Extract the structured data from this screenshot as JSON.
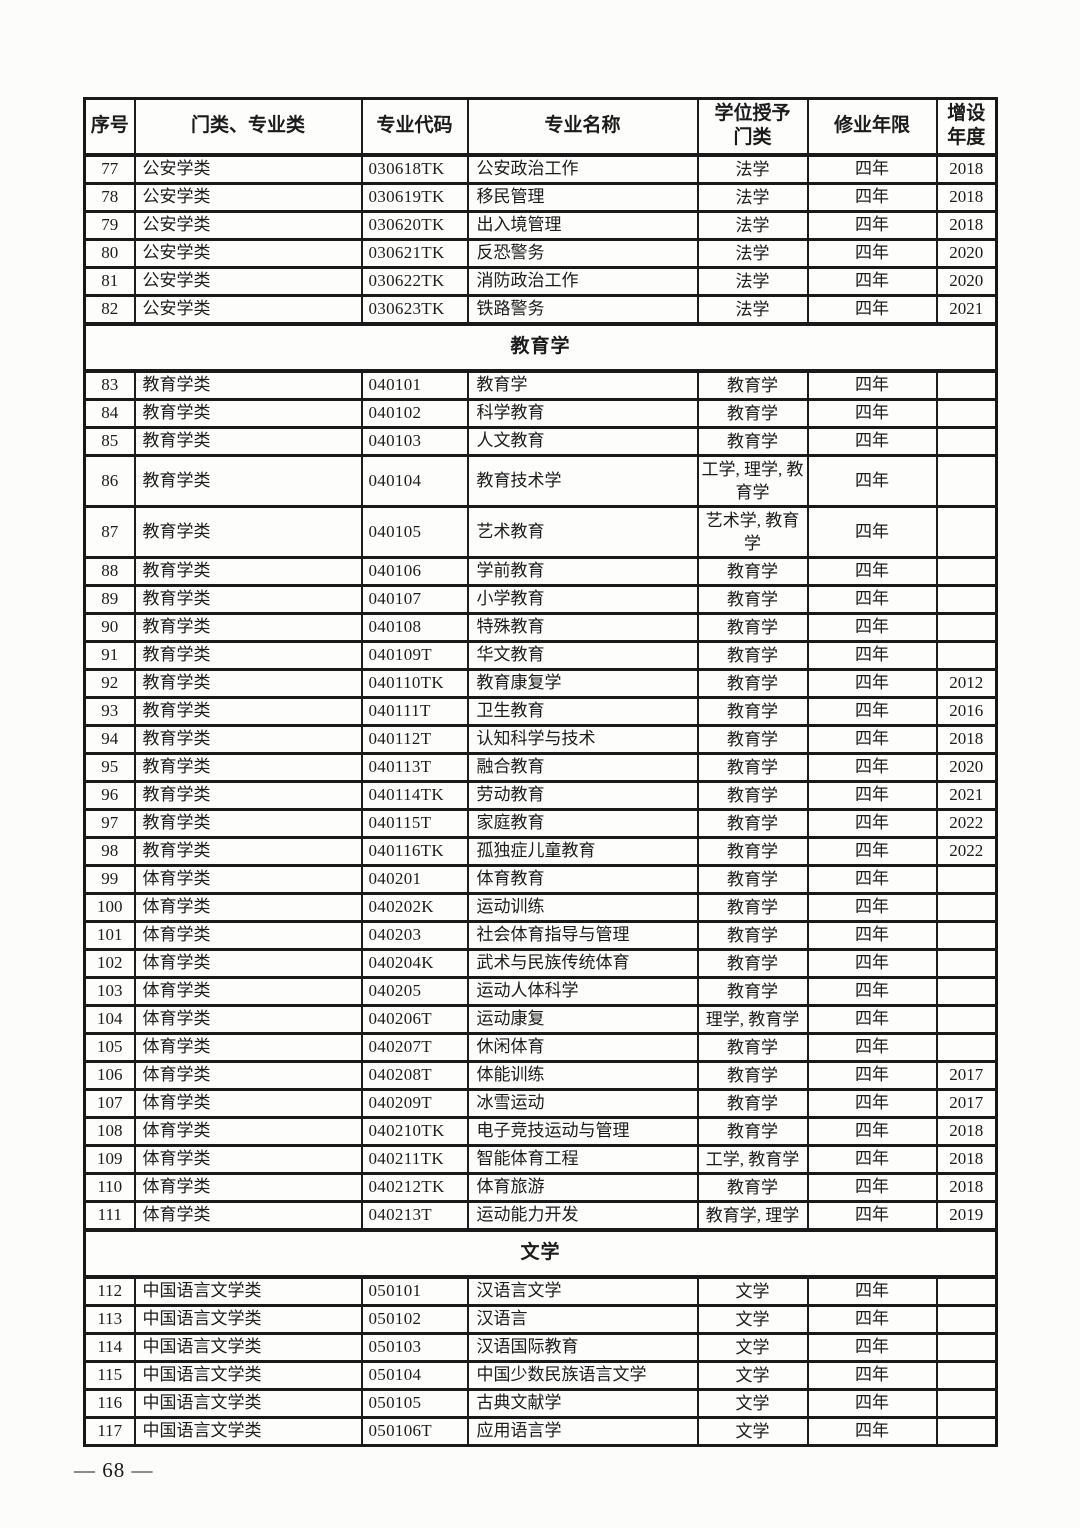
{
  "page": {
    "footer": "— 68 —"
  },
  "colors": {
    "border": "#1a1a1a",
    "text": "#1b1b1b",
    "page_bg": "#fcfcfb"
  },
  "table": {
    "headers": [
      "序号",
      "门类、专业类",
      "专业代码",
      "专业名称",
      "学位授予\n门类",
      "修业年限",
      "增设\n年度"
    ],
    "rows": [
      {
        "type": "row",
        "no": "77",
        "category": "公安学类",
        "code": "030618TK",
        "name": "公安政治工作",
        "degree": "法学",
        "years": "四年",
        "added": "2018"
      },
      {
        "type": "row",
        "no": "78",
        "category": "公安学类",
        "code": "030619TK",
        "name": "移民管理",
        "degree": "法学",
        "years": "四年",
        "added": "2018"
      },
      {
        "type": "row",
        "no": "79",
        "category": "公安学类",
        "code": "030620TK",
        "name": "出入境管理",
        "degree": "法学",
        "years": "四年",
        "added": "2018"
      },
      {
        "type": "row",
        "no": "80",
        "category": "公安学类",
        "code": "030621TK",
        "name": "反恐警务",
        "degree": "法学",
        "years": "四年",
        "added": "2020"
      },
      {
        "type": "row",
        "no": "81",
        "category": "公安学类",
        "code": "030622TK",
        "name": "消防政治工作",
        "degree": "法学",
        "years": "四年",
        "added": "2020"
      },
      {
        "type": "row",
        "no": "82",
        "category": "公安学类",
        "code": "030623TK",
        "name": "铁路警务",
        "degree": "法学",
        "years": "四年",
        "added": "2021"
      },
      {
        "type": "section",
        "label": "教育学"
      },
      {
        "type": "row",
        "no": "83",
        "category": "教育学类",
        "code": "040101",
        "name": "教育学",
        "degree": "教育学",
        "years": "四年",
        "added": ""
      },
      {
        "type": "row",
        "no": "84",
        "category": "教育学类",
        "code": "040102",
        "name": "科学教育",
        "degree": "教育学",
        "years": "四年",
        "added": ""
      },
      {
        "type": "row",
        "no": "85",
        "category": "教育学类",
        "code": "040103",
        "name": "人文教育",
        "degree": "教育学",
        "years": "四年",
        "added": ""
      },
      {
        "type": "row",
        "no": "86",
        "category": "教育学类",
        "code": "040104",
        "name": "教育技术学",
        "degree": "工学, 理学, 教育学",
        "years": "四年",
        "added": ""
      },
      {
        "type": "row",
        "no": "87",
        "category": "教育学类",
        "code": "040105",
        "name": "艺术教育",
        "degree": "艺术学, 教育学",
        "years": "四年",
        "added": ""
      },
      {
        "type": "row",
        "no": "88",
        "category": "教育学类",
        "code": "040106",
        "name": "学前教育",
        "degree": "教育学",
        "years": "四年",
        "added": ""
      },
      {
        "type": "row",
        "no": "89",
        "category": "教育学类",
        "code": "040107",
        "name": "小学教育",
        "degree": "教育学",
        "years": "四年",
        "added": ""
      },
      {
        "type": "row",
        "no": "90",
        "category": "教育学类",
        "code": "040108",
        "name": "特殊教育",
        "degree": "教育学",
        "years": "四年",
        "added": ""
      },
      {
        "type": "row",
        "no": "91",
        "category": "教育学类",
        "code": "040109T",
        "name": "华文教育",
        "degree": "教育学",
        "years": "四年",
        "added": ""
      },
      {
        "type": "row",
        "no": "92",
        "category": "教育学类",
        "code": "040110TK",
        "name": "教育康复学",
        "degree": "教育学",
        "years": "四年",
        "added": "2012"
      },
      {
        "type": "row",
        "no": "93",
        "category": "教育学类",
        "code": "040111T",
        "name": "卫生教育",
        "degree": "教育学",
        "years": "四年",
        "added": "2016"
      },
      {
        "type": "row",
        "no": "94",
        "category": "教育学类",
        "code": "040112T",
        "name": "认知科学与技术",
        "degree": "教育学",
        "years": "四年",
        "added": "2018"
      },
      {
        "type": "row",
        "no": "95",
        "category": "教育学类",
        "code": "040113T",
        "name": "融合教育",
        "degree": "教育学",
        "years": "四年",
        "added": "2020"
      },
      {
        "type": "row",
        "no": "96",
        "category": "教育学类",
        "code": "040114TK",
        "name": "劳动教育",
        "degree": "教育学",
        "years": "四年",
        "added": "2021"
      },
      {
        "type": "row",
        "no": "97",
        "category": "教育学类",
        "code": "040115T",
        "name": "家庭教育",
        "degree": "教育学",
        "years": "四年",
        "added": "2022"
      },
      {
        "type": "row",
        "no": "98",
        "category": "教育学类",
        "code": "040116TK",
        "name": "孤独症儿童教育",
        "degree": "教育学",
        "years": "四年",
        "added": "2022"
      },
      {
        "type": "row",
        "no": "99",
        "category": "体育学类",
        "code": "040201",
        "name": "体育教育",
        "degree": "教育学",
        "years": "四年",
        "added": ""
      },
      {
        "type": "row",
        "no": "100",
        "category": "体育学类",
        "code": "040202K",
        "name": "运动训练",
        "degree": "教育学",
        "years": "四年",
        "added": ""
      },
      {
        "type": "row",
        "no": "101",
        "category": "体育学类",
        "code": "040203",
        "name": "社会体育指导与管理",
        "degree": "教育学",
        "years": "四年",
        "added": ""
      },
      {
        "type": "row",
        "no": "102",
        "category": "体育学类",
        "code": "040204K",
        "name": "武术与民族传统体育",
        "degree": "教育学",
        "years": "四年",
        "added": ""
      },
      {
        "type": "row",
        "no": "103",
        "category": "体育学类",
        "code": "040205",
        "name": "运动人体科学",
        "degree": "教育学",
        "years": "四年",
        "added": ""
      },
      {
        "type": "row",
        "no": "104",
        "category": "体育学类",
        "code": "040206T",
        "name": "运动康复",
        "degree": "理学, 教育学",
        "years": "四年",
        "added": ""
      },
      {
        "type": "row",
        "no": "105",
        "category": "体育学类",
        "code": "040207T",
        "name": "休闲体育",
        "degree": "教育学",
        "years": "四年",
        "added": ""
      },
      {
        "type": "row",
        "no": "106",
        "category": "体育学类",
        "code": "040208T",
        "name": "体能训练",
        "degree": "教育学",
        "years": "四年",
        "added": "2017"
      },
      {
        "type": "row",
        "no": "107",
        "category": "体育学类",
        "code": "040209T",
        "name": "冰雪运动",
        "degree": "教育学",
        "years": "四年",
        "added": "2017"
      },
      {
        "type": "row",
        "no": "108",
        "category": "体育学类",
        "code": "040210TK",
        "name": "电子竞技运动与管理",
        "degree": "教育学",
        "years": "四年",
        "added": "2018"
      },
      {
        "type": "row",
        "no": "109",
        "category": "体育学类",
        "code": "040211TK",
        "name": "智能体育工程",
        "degree": "工学, 教育学",
        "years": "四年",
        "added": "2018"
      },
      {
        "type": "row",
        "no": "110",
        "category": "体育学类",
        "code": "040212TK",
        "name": "体育旅游",
        "degree": "教育学",
        "years": "四年",
        "added": "2018"
      },
      {
        "type": "row",
        "no": "111",
        "category": "体育学类",
        "code": "040213T",
        "name": "运动能力开发",
        "degree": "教育学, 理学",
        "years": "四年",
        "added": "2019"
      },
      {
        "type": "section",
        "label": "文学"
      },
      {
        "type": "row",
        "no": "112",
        "category": "中国语言文学类",
        "code": "050101",
        "name": "汉语言文学",
        "degree": "文学",
        "years": "四年",
        "added": ""
      },
      {
        "type": "row",
        "no": "113",
        "category": "中国语言文学类",
        "code": "050102",
        "name": "汉语言",
        "degree": "文学",
        "years": "四年",
        "added": ""
      },
      {
        "type": "row",
        "no": "114",
        "category": "中国语言文学类",
        "code": "050103",
        "name": "汉语国际教育",
        "degree": "文学",
        "years": "四年",
        "added": ""
      },
      {
        "type": "row",
        "no": "115",
        "category": "中国语言文学类",
        "code": "050104",
        "name": "中国少数民族语言文学",
        "degree": "文学",
        "years": "四年",
        "added": ""
      },
      {
        "type": "row",
        "no": "116",
        "category": "中国语言文学类",
        "code": "050105",
        "name": "古典文献学",
        "degree": "文学",
        "years": "四年",
        "added": ""
      },
      {
        "type": "row",
        "no": "117",
        "category": "中国语言文学类",
        "code": "050106T",
        "name": "应用语言学",
        "degree": "文学",
        "years": "四年",
        "added": ""
      }
    ]
  }
}
